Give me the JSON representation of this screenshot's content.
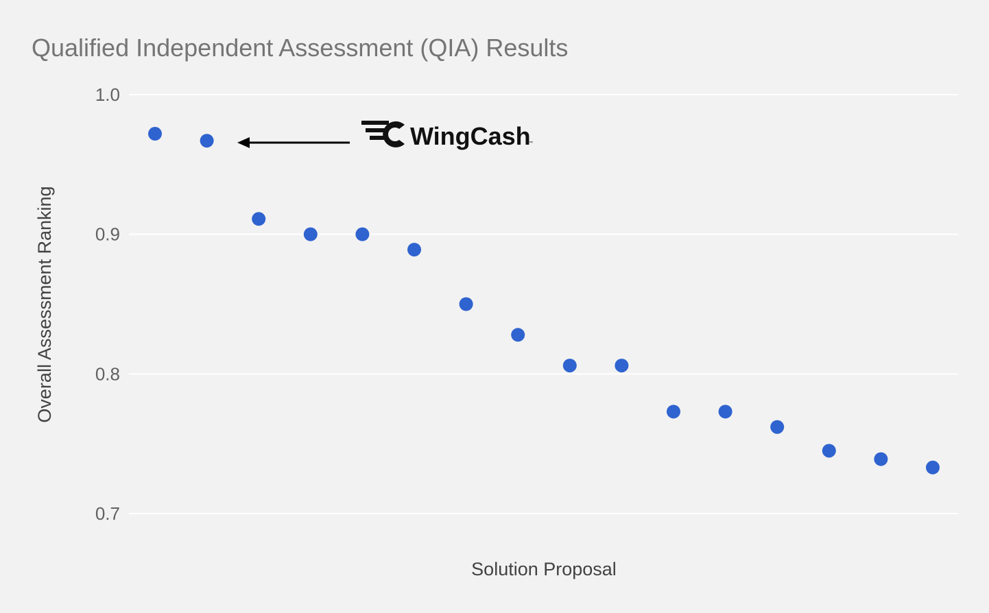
{
  "chart_data": {
    "type": "scatter",
    "title": "Qualified Independent Assessment (QIA) Results",
    "xlabel": "Solution Proposal",
    "ylabel": "Overall Assessment Ranking",
    "ylim": [
      0.7,
      1.0
    ],
    "yticks": [
      "0.7",
      "0.8",
      "0.9",
      "1.0"
    ],
    "grid": true,
    "x": [
      1,
      2,
      3,
      4,
      5,
      6,
      7,
      8,
      9,
      10,
      11,
      12,
      13,
      14,
      15,
      16
    ],
    "y": [
      0.972,
      0.967,
      0.911,
      0.9,
      0.9,
      0.889,
      0.85,
      0.828,
      0.806,
      0.806,
      0.773,
      0.773,
      0.762,
      0.745,
      0.739,
      0.733
    ],
    "point_color": "#2f63cf",
    "annotation": {
      "text": "WingCash",
      "points_to_index": 1,
      "logo_icon": "wingcash-winged-c-icon",
      "arrow_icon": "arrow-left-icon"
    }
  }
}
